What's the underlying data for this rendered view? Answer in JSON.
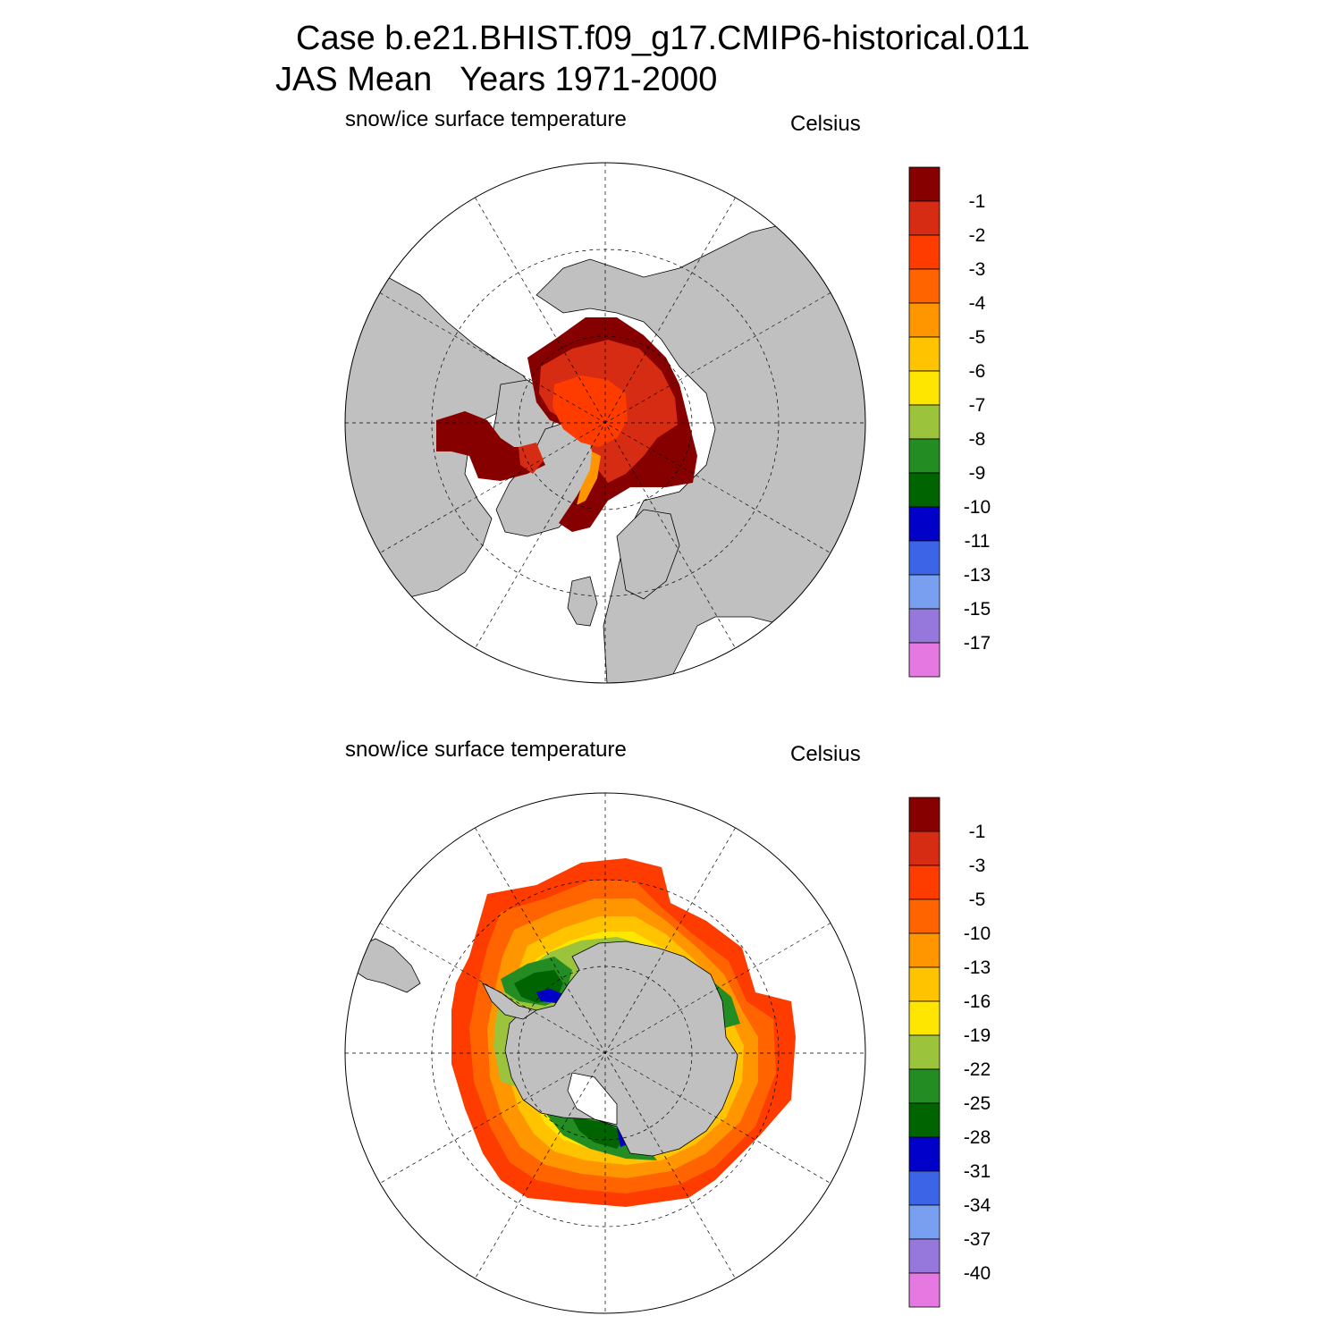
{
  "title": {
    "line1": "Case b.e21.BHIST.f09_g17.CMIP6-historical.011",
    "line2": "JAS Mean   Years 1971-2000"
  },
  "panels": [
    {
      "hemisphere": "north",
      "variable_label": "snow/ice surface temperature",
      "units_label": "Celsius",
      "colorbar": {
        "colors": [
          "#870000",
          "#d72c14",
          "#ff3c00",
          "#ff6400",
          "#ff9600",
          "#ffc300",
          "#ffe600",
          "#9cc33c",
          "#238c23",
          "#006400",
          "#0000c8",
          "#3c64e6",
          "#789ff0",
          "#9678dc",
          "#e678e1"
        ],
        "labels": [
          "-1",
          "-2",
          "-3",
          "-4",
          "-5",
          "-6",
          "-7",
          "-8",
          "-9",
          "-10",
          "-11",
          "-13",
          "-15",
          "-17"
        ]
      }
    },
    {
      "hemisphere": "south",
      "variable_label": "snow/ice surface temperature",
      "units_label": "Celsius",
      "colorbar": {
        "colors": [
          "#870000",
          "#d72c14",
          "#ff3c00",
          "#ff6400",
          "#ff9600",
          "#ffc300",
          "#ffe600",
          "#9cc33c",
          "#238c23",
          "#006400",
          "#0000c8",
          "#3c64e6",
          "#789ff0",
          "#9678dc",
          "#e678e1"
        ],
        "labels": [
          "-1",
          "-3",
          "-5",
          "-10",
          "-13",
          "-16",
          "-19",
          "-22",
          "-25",
          "-28",
          "-31",
          "-34",
          "-37",
          "-40"
        ]
      }
    }
  ],
  "map_colors": {
    "land": "#c0c0c0",
    "ocean": "#ffffff",
    "coastline": "#000000",
    "grid": "#000000"
  }
}
